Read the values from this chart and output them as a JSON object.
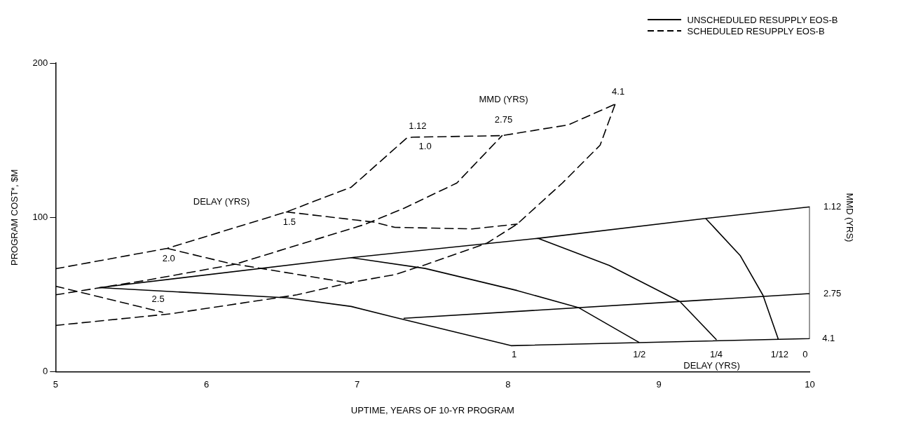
{
  "chart_data": {
    "type": "line",
    "xlabel": "UPTIME, YEARS OF 10-YR PROGRAM",
    "ylabel": "PROGRAM COST*, $M",
    "y2label": "MMD (YRS)",
    "xlim": [
      5,
      10
    ],
    "xticks": [
      5,
      6,
      7,
      8,
      9,
      10
    ],
    "ylim": [
      0,
      200
    ],
    "yticks": [
      0,
      100,
      200
    ],
    "grid": false,
    "legend": "top right",
    "marker": "none",
    "series": [
      {
        "name": "UNSCHEDULED RESUPPLY EOS-B",
        "color": "#000000",
        "line_style": "solid",
        "x": [
          5.29,
          6.96,
          8.2,
          9.31,
          10.0,
          null,
          5.29,
          6.53,
          6.96,
          7.25,
          8.02,
          10.0,
          10.0,
          null,
          7.31,
          10.0,
          null,
          6.96,
          7.45,
          8.06,
          8.47,
          8.87,
          null,
          8.2,
          8.67,
          9.14,
          9.38,
          null,
          9.31,
          9.54,
          9.69,
          9.79
        ],
        "values": [
          54.6,
          74.0,
          86.5,
          99.4,
          106.9,
          null,
          54.6,
          48,
          42.4,
          35.3,
          17,
          21.6,
          106.9,
          null,
          34.7,
          50.7,
          null,
          74.0,
          67,
          52.7,
          41.5,
          19,
          null,
          86.5,
          69,
          45.5,
          21,
          null,
          99.4,
          75.2,
          49.6,
          21.6
        ]
      },
      {
        "name": "SCHEDULED RESUPPLY EOS-B",
        "color": "#000000",
        "line_style": "dashed",
        "x": [
          5.0,
          5.74,
          6.53,
          6.96,
          7.33,
          7.37,
          7.96,
          8.4,
          8.71,
          null,
          5.0,
          5.6,
          6.19,
          7.05,
          7.31,
          7.66,
          7.96,
          null,
          5.0,
          5.76,
          6.6,
          6.96,
          7.25,
          7.46,
          7.86,
          8.06,
          8.36,
          8.61,
          8.71,
          null,
          6.53,
          7.11,
          7.25,
          7.76,
          8.06,
          null,
          5.74,
          6.14,
          6.96,
          null,
          5.0,
          5.71
        ],
        "values": [
          66.8,
          80,
          103.6,
          119.6,
          151.6,
          152,
          153,
          160,
          173.4,
          null,
          49.9,
          59.3,
          69.7,
          95.5,
          106,
          122.3,
          153,
          null,
          30.1,
          37.6,
          49.9,
          58,
          63,
          69.7,
          83.4,
          95.7,
          122.3,
          146.8,
          173.4,
          null,
          103.6,
          97,
          93.6,
          92.6,
          95.7,
          null,
          80,
          70.6,
          57.4,
          null,
          55.5,
          38.6
        ]
      }
    ],
    "annotations": [
      "DELAY (YRS)",
      "1.5",
      "2.0",
      "2.5",
      "1.12",
      "1.0",
      "MMD (YRS)",
      "2.75",
      "4.1",
      "1.12",
      "2.75",
      "4.1",
      "1",
      "1/2",
      "1/4",
      "1/12",
      "0",
      "DELAY (YRS)"
    ]
  }
}
